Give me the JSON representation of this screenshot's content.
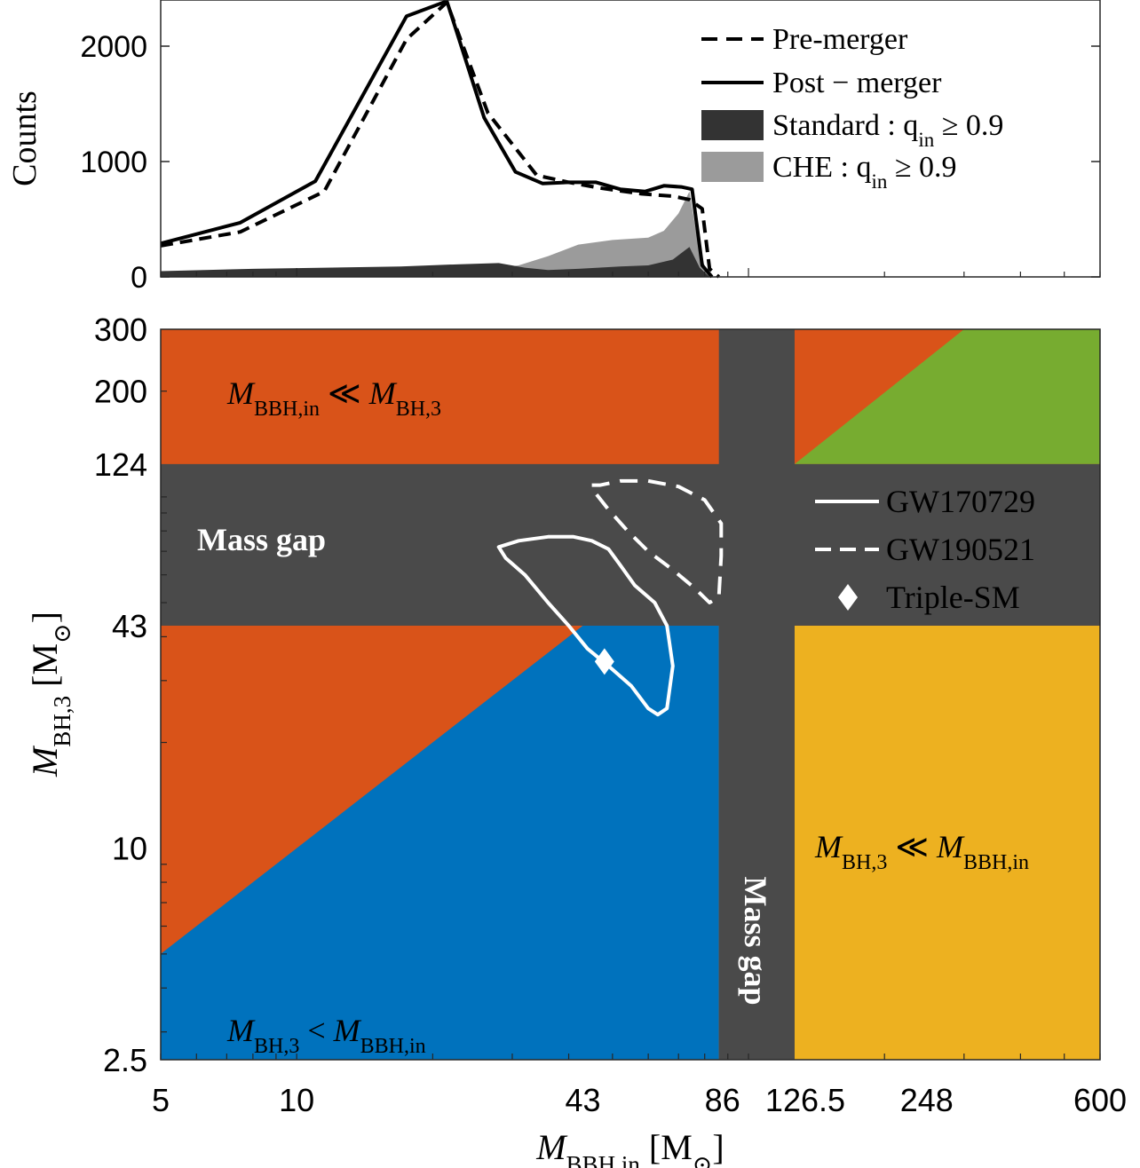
{
  "chart_data": [
    {
      "type": "line",
      "panel": "top",
      "ylabel": "Counts",
      "xscale": "log",
      "xlim": [
        5,
        600
      ],
      "ylim": [
        0,
        2400
      ],
      "yticks": [
        0,
        1000,
        2000
      ],
      "ytick_labels": [
        "0",
        "1000",
        "2000"
      ],
      "series": [
        {
          "name": "Pre-merger",
          "style": "dashed",
          "color": "#000000",
          "x": [
            5,
            7.5,
            11.5,
            17.5,
            21.5,
            26.5,
            34,
            40,
            47,
            58,
            68,
            74,
            79,
            82,
            86
          ],
          "y": [
            270,
            390,
            740,
            2060,
            2380,
            1420,
            880,
            820,
            770,
            720,
            700,
            670,
            590,
            70,
            0
          ]
        },
        {
          "name": "Post − merger",
          "style": "solid",
          "color": "#000000",
          "x": [
            5,
            7.5,
            11,
            17.5,
            21.5,
            26,
            30.5,
            35,
            40,
            46,
            52,
            59,
            65,
            71,
            75,
            79,
            83
          ],
          "y": [
            290,
            470,
            830,
            2260,
            2390,
            1380,
            910,
            810,
            820,
            820,
            760,
            740,
            790,
            780,
            760,
            100,
            0
          ]
        },
        {
          "name": "Standard : q",
          "subscript": "in",
          "suffix": " ≥ 0.9",
          "style": "filled",
          "color": "#333333",
          "x": [
            5,
            8,
            17,
            23,
            28,
            32,
            36,
            42,
            52,
            60,
            68,
            74,
            78,
            82
          ],
          "y": [
            50,
            70,
            90,
            110,
            120,
            80,
            60,
            70,
            90,
            100,
            150,
            260,
            80,
            0
          ]
        },
        {
          "name": "CHE : q",
          "subscript": "in",
          "suffix": " ≥ 0.9",
          "style": "filled",
          "color": "#9b9b9b",
          "x": [
            5,
            20,
            31,
            36,
            42,
            50,
            60,
            65,
            70,
            74,
            78,
            82
          ],
          "y": [
            0,
            0,
            100,
            180,
            280,
            320,
            340,
            400,
            550,
            740,
            200,
            0
          ]
        }
      ]
    },
    {
      "type": "region-map",
      "panel": "bottom",
      "xscale": "log",
      "yscale": "log",
      "xlim": [
        5,
        600
      ],
      "ylim": [
        2.5,
        300
      ],
      "xticks": [
        5,
        10,
        43,
        86,
        126.5,
        248,
        600
      ],
      "xtick_labels": [
        "5",
        "10",
        "43",
        "86",
        "126.5",
        "248",
        "600"
      ],
      "yticks": [
        2.5,
        10,
        43,
        124,
        200,
        300
      ],
      "ytick_labels": [
        "2.5",
        "10",
        "43",
        "124",
        "200",
        "300"
      ],
      "regions": [
        {
          "label": "M",
          "sub": "BBH,in",
          "rel": " ≪ ",
          "label2": "M",
          "sub2": "BH,3",
          "color": "#d95319"
        },
        {
          "label": "M",
          "sub": "BH,3",
          "rel": " < ",
          "label2": "M",
          "sub2": "BBH,in",
          "color": "#0072bd"
        },
        {
          "label": "M",
          "sub": "BH,3",
          "rel": " ≪ ",
          "label2": "M",
          "sub2": "BBH,in",
          "color": "#edb120"
        },
        {
          "label": "",
          "color": "#77ac30"
        }
      ],
      "mass_gap": {
        "label": "Mass gap",
        "color": "#4a4a4a",
        "x_range": [
          86,
          126.5
        ],
        "y_range": [
          43,
          124
        ]
      },
      "contours": [
        {
          "name": "GW170729",
          "style": "solid",
          "color": "#ffffff",
          "x": [
            28,
            31,
            36,
            41,
            45,
            49,
            52,
            56,
            62,
            66,
            68,
            66,
            63,
            60,
            55,
            49,
            44,
            40,
            36,
            32,
            29,
            28
          ],
          "y": [
            72,
            75,
            77,
            77,
            75,
            71,
            64,
            56,
            50,
            43,
            33,
            25,
            24,
            25,
            29,
            33,
            37,
            43,
            50,
            60,
            67,
            72
          ]
        },
        {
          "name": "GW190521",
          "style": "dashed",
          "color": "#ffffff",
          "x": [
            45,
            47,
            52,
            60,
            70,
            80,
            87,
            87,
            86,
            82,
            76,
            68,
            60,
            54,
            49,
            46,
            45
          ],
          "y": [
            108,
            108,
            111,
            111,
            107,
            98,
            84,
            68,
            52,
            50,
            55,
            62,
            70,
            80,
            92,
            102,
            108
          ]
        }
      ],
      "points": [
        {
          "name": "Triple-SM",
          "x": 48,
          "y": 34,
          "marker": "diamond",
          "color": "#ffffff"
        }
      ],
      "xlabel": {
        "m": "M",
        "sub": "BBH,in",
        "unit": "[M",
        "unit_sub": "⊙",
        "close": "]"
      },
      "ylabel": {
        "m": "M",
        "sub": "BH,3",
        "unit": "[M",
        "unit_sub": "⊙",
        "close": "]"
      }
    }
  ]
}
